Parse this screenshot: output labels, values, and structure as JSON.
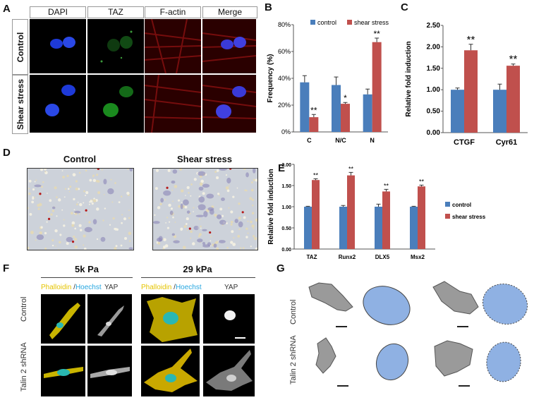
{
  "panels": {
    "A": {
      "letter": "A",
      "columns": [
        "DAPI",
        "TAZ",
        "F-actin",
        "Merge"
      ],
      "rows": [
        "Control",
        "Shear stress"
      ]
    },
    "B": {
      "letter": "B"
    },
    "C": {
      "letter": "C"
    },
    "D": {
      "letter": "D",
      "labels": [
        "Control",
        "Shear stress"
      ]
    },
    "E": {
      "letter": "E"
    },
    "F": {
      "letter": "F",
      "conditions": [
        "5k Pa",
        "29 kPa"
      ],
      "stain_phalloidin": "Phalloidin",
      "stain_sep": " /",
      "stain_hoechst": "Hoechst",
      "stain_yap": "YAP",
      "rows": [
        "Control",
        "Talin 2 shRNA"
      ]
    },
    "G": {
      "letter": "G",
      "rows": [
        "Control",
        "Talin 2 shRNA"
      ]
    }
  },
  "colors": {
    "control": "#4a7ebb",
    "shear": "#c0504d",
    "cell_fill": "#8fb1e3"
  },
  "chart_data": [
    {
      "panel": "B",
      "type": "bar",
      "categories": [
        "C",
        "N/C",
        "N"
      ],
      "series": [
        {
          "name": "control",
          "values": [
            37,
            35,
            28
          ],
          "errors": [
            5,
            6,
            4
          ]
        },
        {
          "name": "shear stress",
          "values": [
            11,
            21,
            67
          ],
          "errors": [
            2,
            1,
            3
          ]
        }
      ],
      "annotations": [
        "**",
        "*",
        "**"
      ],
      "ylabel": "Frequency (%)",
      "ylim": [
        0,
        80
      ],
      "yticks": [
        "0%",
        "20%",
        "40%",
        "60%",
        "80%"
      ],
      "legend": "top"
    },
    {
      "panel": "C",
      "type": "bar",
      "categories": [
        "CTGF",
        "Cyr61"
      ],
      "series": [
        {
          "values": [
            1.0,
            1.0
          ],
          "errors": [
            0.04,
            0.13
          ]
        },
        {
          "values": [
            1.92,
            1.56
          ],
          "errors": [
            0.14,
            0.04
          ]
        }
      ],
      "annotations": [
        "**",
        "**"
      ],
      "ylabel": "Relative fold induction",
      "ylim": [
        0,
        2.5
      ],
      "yticks": [
        "0.00",
        "0.50",
        "1.00",
        "1.50",
        "2.00",
        "2.50"
      ]
    },
    {
      "panel": "E",
      "type": "bar",
      "categories": [
        "TAZ",
        "Runx2",
        "DLX5",
        "Msx2"
      ],
      "series": [
        {
          "name": "control",
          "values": [
            1.0,
            1.0,
            1.0,
            1.0
          ],
          "errors": [
            0.01,
            0.03,
            0.06,
            0.01
          ]
        },
        {
          "name": "shear stress",
          "values": [
            1.63,
            1.74,
            1.36,
            1.48
          ],
          "errors": [
            0.03,
            0.07,
            0.05,
            0.03
          ]
        }
      ],
      "annotations": [
        "**",
        "**",
        "**",
        "**"
      ],
      "ylabel": "Relative fold induction",
      "ylim": [
        0,
        2.0
      ],
      "yticks": [
        "0.00",
        "0.50",
        "1.00",
        "1.50",
        "2.00"
      ],
      "legend": "right"
    }
  ]
}
